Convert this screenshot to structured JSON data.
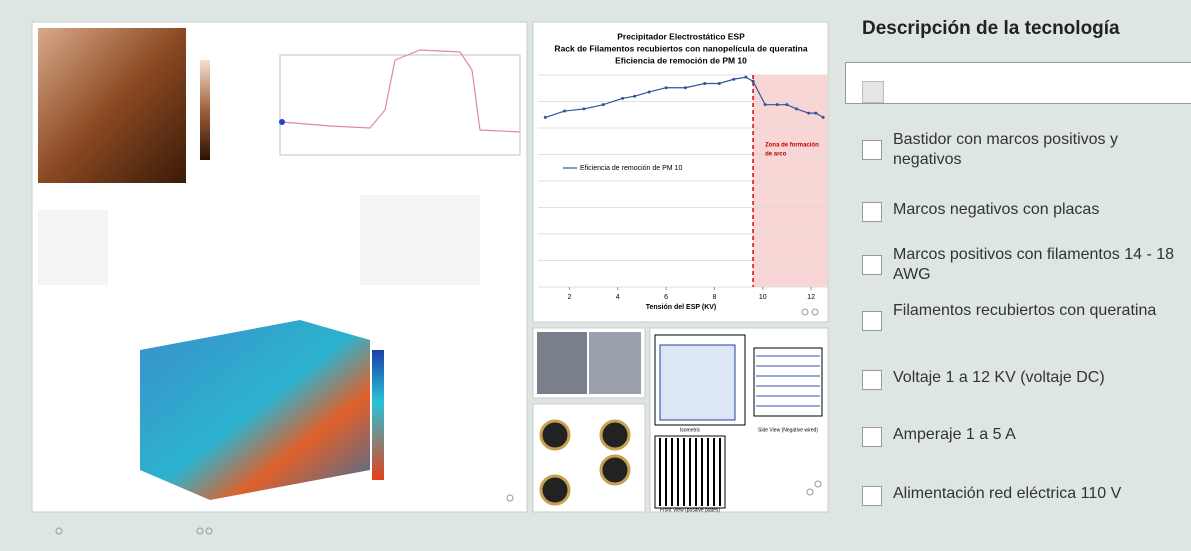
{
  "sidebar": {
    "title": "Descripción de la tecnología",
    "items": [
      "Bastidor con marcos positivos y negativos",
      "Marcos negativos con placas",
      "Marcos positivos con filamentos 14 - 18 AWG",
      "Filamentos recubiertos con queratina",
      "Voltaje 1 a 12 KV (voltaje DC)",
      "Amperaje 1 a 5 A",
      "Alimentación red eléctrica 110 V"
    ]
  },
  "chart_data": {
    "type": "line",
    "title": [
      "Precipitador Electrostático ESP",
      "Rack de Filamentos recubiertos con nanopelícula de queratina",
      "Eficiencia de remoción de PM 10"
    ],
    "x_label": "Tensión del ESP (KV)",
    "x": [
      1,
      1.8,
      2.6,
      3.4,
      4.2,
      4.7,
      5.3,
      6,
      6.8,
      7.6,
      8.2,
      8.8,
      9.3,
      9.6,
      10.1,
      10.6,
      11,
      11.4,
      11.9,
      12.2,
      12.5
    ],
    "series": [
      {
        "name": "Eficiencia de remoción de PM 10",
        "color": "#2f5597",
        "values": [
          80,
          83,
          84,
          86,
          89,
          90,
          92,
          94,
          94,
          96,
          96,
          98,
          99,
          97,
          86,
          86,
          86,
          84,
          82,
          82,
          80
        ]
      }
    ],
    "xlim": [
      0.7,
      12.7
    ],
    "xticks": [
      2,
      4,
      6,
      8,
      10,
      12
    ],
    "ylim": [
      0,
      100
    ],
    "zone": {
      "from": 9.6,
      "label": [
        "Zona de formación",
        "de arco"
      ],
      "color": "#f9d6d6",
      "line_color": "#e00000"
    }
  },
  "figures": {
    "isometric": "Isometric",
    "side_view": "Side View (Negative wired)",
    "front_view": "Front View (positive plates)"
  }
}
